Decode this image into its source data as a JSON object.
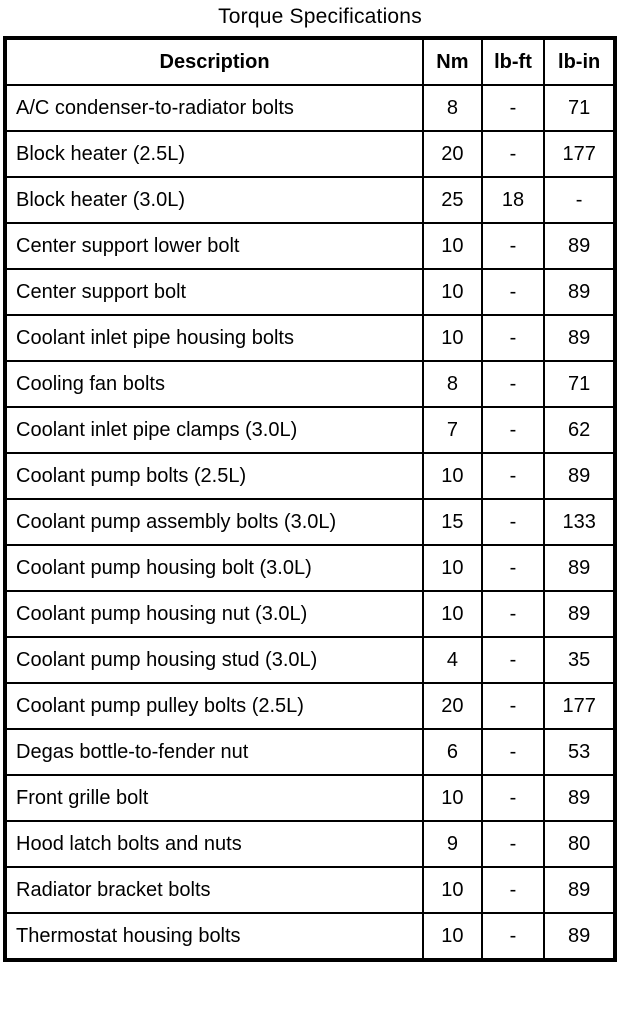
{
  "page": {
    "title": "Torque Specifications"
  },
  "table": {
    "columns": [
      "Description",
      "Nm",
      "lb-ft",
      "lb-in"
    ],
    "rows": [
      {
        "description": "A/C condenser-to-radiator bolts",
        "nm": "8",
        "lb_ft": "-",
        "lb_in": "71"
      },
      {
        "description": "Block heater (2.5L)",
        "nm": "20",
        "lb_ft": "-",
        "lb_in": "177"
      },
      {
        "description": "Block heater (3.0L)",
        "nm": "25",
        "lb_ft": "18",
        "lb_in": "-"
      },
      {
        "description": "Center support lower bolt",
        "nm": "10",
        "lb_ft": "-",
        "lb_in": "89"
      },
      {
        "description": "Center support bolt",
        "nm": "10",
        "lb_ft": "-",
        "lb_in": "89"
      },
      {
        "description": "Coolant inlet pipe housing bolts",
        "nm": "10",
        "lb_ft": "-",
        "lb_in": "89"
      },
      {
        "description": "Cooling fan bolts",
        "nm": "8",
        "lb_ft": "-",
        "lb_in": "71"
      },
      {
        "description": "Coolant inlet pipe clamps (3.0L)",
        "nm": "7",
        "lb_ft": "-",
        "lb_in": "62"
      },
      {
        "description": "Coolant pump bolts (2.5L)",
        "nm": "10",
        "lb_ft": "-",
        "lb_in": "89"
      },
      {
        "description": "Coolant pump assembly bolts (3.0L)",
        "nm": "15",
        "lb_ft": "-",
        "lb_in": "133"
      },
      {
        "description": "Coolant pump housing bolt (3.0L)",
        "nm": "10",
        "lb_ft": "-",
        "lb_in": "89"
      },
      {
        "description": "Coolant pump housing nut (3.0L)",
        "nm": "10",
        "lb_ft": "-",
        "lb_in": "89"
      },
      {
        "description": "Coolant pump housing stud (3.0L)",
        "nm": "4",
        "lb_ft": "-",
        "lb_in": "35"
      },
      {
        "description": "Coolant pump pulley bolts (2.5L)",
        "nm": "20",
        "lb_ft": "-",
        "lb_in": "177"
      },
      {
        "description": "Degas bottle-to-fender nut",
        "nm": "6",
        "lb_ft": "-",
        "lb_in": "53"
      },
      {
        "description": "Front grille bolt",
        "nm": "10",
        "lb_ft": "-",
        "lb_in": "89"
      },
      {
        "description": "Hood latch bolts and nuts",
        "nm": "9",
        "lb_ft": "-",
        "lb_in": "80"
      },
      {
        "description": "Radiator bracket bolts",
        "nm": "10",
        "lb_ft": "-",
        "lb_in": "89"
      },
      {
        "description": "Thermostat housing bolts",
        "nm": "10",
        "lb_ft": "-",
        "lb_in": "89"
      }
    ]
  }
}
